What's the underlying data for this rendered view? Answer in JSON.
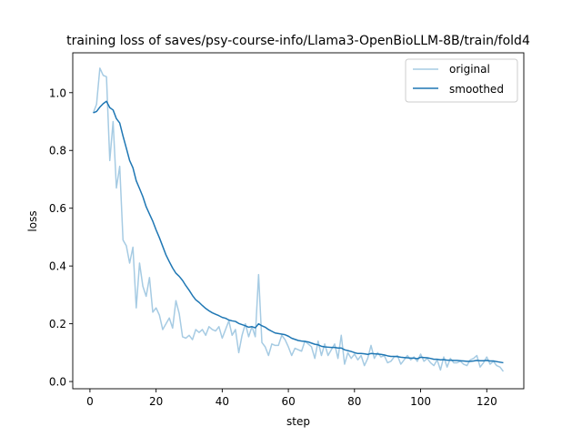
{
  "chart_data": {
    "type": "line",
    "title": "training loss of saves/psy-course-info/Llama3-OpenBioLLM-8B/train/fold4",
    "xlabel": "step",
    "ylabel": "loss",
    "xlim": [
      -5.2,
      131.2
    ],
    "ylim": [
      -0.025,
      1.138
    ],
    "xticks": [
      0,
      20,
      40,
      60,
      80,
      100,
      120
    ],
    "yticks": [
      0.0,
      0.2,
      0.4,
      0.6,
      0.8,
      1.0
    ],
    "xtick_labels": [
      "0",
      "20",
      "40",
      "60",
      "80",
      "100",
      "120"
    ],
    "ytick_labels": [
      "0.0",
      "0.2",
      "0.4",
      "0.6",
      "0.8",
      "1.0"
    ],
    "grid": false,
    "legend_position": "upper right",
    "series": [
      {
        "name": "original",
        "color": "#a6cbe3",
        "x": [
          1,
          2,
          3,
          4,
          5,
          6,
          7,
          8,
          9,
          10,
          11,
          12,
          13,
          14,
          15,
          16,
          17,
          18,
          19,
          20,
          21,
          22,
          23,
          24,
          25,
          26,
          27,
          28,
          29,
          30,
          31,
          32,
          33,
          34,
          35,
          36,
          37,
          38,
          39,
          40,
          41,
          42,
          43,
          44,
          45,
          46,
          47,
          48,
          49,
          50,
          51,
          52,
          53,
          54,
          55,
          56,
          57,
          58,
          59,
          60,
          61,
          62,
          63,
          64,
          65,
          66,
          67,
          68,
          69,
          70,
          71,
          72,
          73,
          74,
          75,
          76,
          77,
          78,
          79,
          80,
          81,
          82,
          83,
          84,
          85,
          86,
          87,
          88,
          89,
          90,
          91,
          92,
          93,
          94,
          95,
          96,
          97,
          98,
          99,
          100,
          101,
          102,
          103,
          104,
          105,
          106,
          107,
          108,
          109,
          110,
          111,
          112,
          113,
          114,
          115,
          116,
          117,
          118,
          119,
          120,
          121,
          122,
          123,
          124,
          125
        ],
        "y": [
          0.93,
          0.96,
          1.085,
          1.06,
          1.055,
          0.765,
          0.9,
          0.67,
          0.745,
          0.49,
          0.47,
          0.41,
          0.465,
          0.255,
          0.41,
          0.33,
          0.295,
          0.36,
          0.24,
          0.255,
          0.23,
          0.18,
          0.2,
          0.22,
          0.185,
          0.28,
          0.235,
          0.155,
          0.15,
          0.16,
          0.145,
          0.18,
          0.17,
          0.18,
          0.16,
          0.19,
          0.18,
          0.175,
          0.19,
          0.15,
          0.18,
          0.21,
          0.16,
          0.18,
          0.1,
          0.16,
          0.2,
          0.155,
          0.19,
          0.155,
          0.37,
          0.135,
          0.12,
          0.09,
          0.13,
          0.125,
          0.125,
          0.16,
          0.145,
          0.12,
          0.09,
          0.115,
          0.11,
          0.105,
          0.14,
          0.13,
          0.12,
          0.08,
          0.14,
          0.09,
          0.13,
          0.09,
          0.11,
          0.13,
          0.08,
          0.16,
          0.06,
          0.1,
          0.08,
          0.095,
          0.075,
          0.09,
          0.055,
          0.08,
          0.125,
          0.08,
          0.1,
          0.085,
          0.09,
          0.065,
          0.07,
          0.085,
          0.09,
          0.06,
          0.075,
          0.09,
          0.075,
          0.085,
          0.07,
          0.095,
          0.07,
          0.08,
          0.065,
          0.055,
          0.075,
          0.04,
          0.085,
          0.05,
          0.08,
          0.065,
          0.065,
          0.07,
          0.06,
          0.055,
          0.075,
          0.08,
          0.09,
          0.05,
          0.065,
          0.085,
          0.06,
          0.07,
          0.055,
          0.05,
          0.035
        ]
      },
      {
        "name": "smoothed",
        "color": "#1f77b4",
        "x": [
          1,
          2,
          3,
          4,
          5,
          6,
          7,
          8,
          9,
          10,
          11,
          12,
          13,
          14,
          15,
          16,
          17,
          18,
          19,
          20,
          21,
          22,
          23,
          24,
          25,
          26,
          27,
          28,
          29,
          30,
          31,
          32,
          33,
          34,
          35,
          36,
          37,
          38,
          39,
          40,
          41,
          42,
          43,
          44,
          45,
          46,
          47,
          48,
          49,
          50,
          51,
          52,
          53,
          54,
          55,
          56,
          57,
          58,
          59,
          60,
          61,
          62,
          63,
          64,
          65,
          66,
          67,
          68,
          69,
          70,
          71,
          72,
          73,
          74,
          75,
          76,
          77,
          78,
          79,
          80,
          81,
          82,
          83,
          84,
          85,
          86,
          87,
          88,
          89,
          90,
          91,
          92,
          93,
          94,
          95,
          96,
          97,
          98,
          99,
          100,
          101,
          102,
          103,
          104,
          105,
          106,
          107,
          108,
          109,
          110,
          111,
          112,
          113,
          114,
          115,
          116,
          117,
          118,
          119,
          120,
          121,
          122,
          123,
          124,
          125
        ],
        "y": [
          0.93,
          0.935,
          0.95,
          0.962,
          0.97,
          0.948,
          0.94,
          0.91,
          0.895,
          0.85,
          0.808,
          0.765,
          0.74,
          0.695,
          0.668,
          0.64,
          0.605,
          0.58,
          0.555,
          0.525,
          0.498,
          0.468,
          0.438,
          0.415,
          0.393,
          0.375,
          0.364,
          0.35,
          0.332,
          0.316,
          0.298,
          0.283,
          0.274,
          0.263,
          0.253,
          0.245,
          0.238,
          0.233,
          0.228,
          0.222,
          0.219,
          0.213,
          0.21,
          0.208,
          0.201,
          0.197,
          0.193,
          0.188,
          0.19,
          0.186,
          0.2,
          0.193,
          0.188,
          0.18,
          0.174,
          0.168,
          0.166,
          0.164,
          0.162,
          0.157,
          0.15,
          0.146,
          0.142,
          0.14,
          0.139,
          0.137,
          0.133,
          0.129,
          0.127,
          0.122,
          0.12,
          0.119,
          0.118,
          0.118,
          0.116,
          0.116,
          0.11,
          0.107,
          0.104,
          0.1,
          0.097,
          0.097,
          0.096,
          0.094,
          0.097,
          0.096,
          0.095,
          0.094,
          0.092,
          0.089,
          0.087,
          0.087,
          0.086,
          0.084,
          0.083,
          0.082,
          0.081,
          0.081,
          0.079,
          0.084,
          0.083,
          0.082,
          0.08,
          0.077,
          0.077,
          0.075,
          0.076,
          0.074,
          0.074,
          0.073,
          0.073,
          0.072,
          0.071,
          0.07,
          0.07,
          0.071,
          0.073,
          0.072,
          0.072,
          0.073,
          0.071,
          0.071,
          0.069,
          0.067,
          0.065
        ]
      }
    ]
  }
}
